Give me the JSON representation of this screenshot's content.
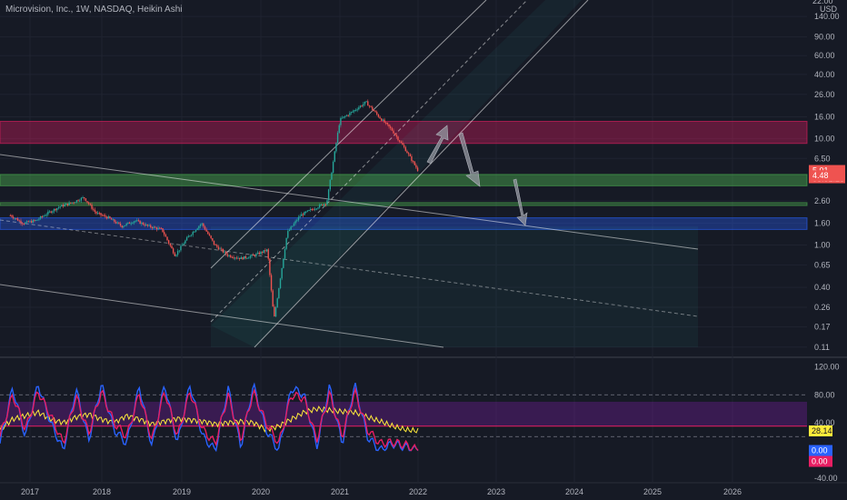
{
  "legend": "Microvision, Inc., 1W, NASDAQ, Heikin Ashi",
  "currency": "USD",
  "top_tick": "22.00",
  "colors": {
    "background": "#161a25",
    "up": "#26a69a",
    "down": "#ef5350",
    "channel": "#ffffff",
    "red_zone": "#e91e63",
    "green_zone": "#4caf50",
    "blue_zone": "#2962ff",
    "k_line": "#2962ff",
    "d_line": "#e91e63",
    "rsi_line": "#ffeb3b",
    "osc_band": "#7b1fa2"
  },
  "chart_data": [
    {
      "type": "candlestick",
      "title": "Microvision, Inc., 1W, NASDAQ, Heikin Ashi",
      "y_scale": "log",
      "ylim": [
        0.09,
        200
      ],
      "x_ticks": [
        "2017",
        "2018",
        "2019",
        "2020",
        "2021",
        "2022",
        "2023",
        "2024",
        "2025",
        "2026"
      ],
      "y_ticks": [
        "140.00",
        "90.00",
        "60.00",
        "40.00",
        "26.00",
        "16.00",
        "10.00",
        "6.50",
        "2.60",
        "1.60",
        "1.00",
        "0.65",
        "0.40",
        "0.26",
        "0.17",
        "0.11"
      ],
      "price_labels": {
        "current": "5.01",
        "countdown": "08:51:28",
        "low": "4.48"
      },
      "zones": [
        {
          "name": "resistance",
          "from": 9.0,
          "to": 14.5
        },
        {
          "name": "support",
          "from": 3.6,
          "to": 4.6
        },
        {
          "name": "support-thin",
          "from": 2.35,
          "to": 2.5
        },
        {
          "name": "demand",
          "from": 1.4,
          "to": 1.8
        }
      ],
      "series": [
        {
          "x": [
            "2016-10",
            "2016-12",
            "2017-02",
            "2017-04",
            "2017-06",
            "2017-08",
            "2017-10",
            "2017-12",
            "2018-02",
            "2018-04",
            "2018-06",
            "2018-08",
            "2018-10",
            "2018-12",
            "2019-02",
            "2019-04",
            "2019-06",
            "2019-08",
            "2019-10",
            "2019-12",
            "2020-02",
            "2020-03",
            "2020-05",
            "2020-07",
            "2020-09",
            "2020-11",
            "2021-01",
            "2021-03",
            "2021-05",
            "2021-07",
            "2021-09",
            "2021-11",
            "2022-01"
          ],
          "values": [
            1.9,
            1.6,
            1.7,
            2.0,
            2.3,
            2.5,
            2.8,
            2.0,
            1.8,
            1.5,
            1.7,
            1.5,
            1.4,
            0.8,
            1.2,
            1.6,
            1.0,
            0.8,
            0.75,
            0.8,
            0.9,
            0.2,
            1.3,
            1.9,
            2.2,
            2.5,
            15.0,
            18.0,
            22.0,
            16.0,
            12.0,
            8.0,
            5.0
          ]
        }
      ]
    },
    {
      "type": "line",
      "title": "",
      "ylim": [
        -45,
        130
      ],
      "y_ticks": [
        "120.00",
        "80.00",
        "40.00",
        "0.00",
        "-40.00"
      ],
      "levels": [
        80,
        20
      ],
      "band": [
        35,
        70
      ],
      "last_values": {
        "rsi": "28.14",
        "k": "0.00",
        "d": "0.00"
      },
      "series": [
        {
          "name": "RSI",
          "values": [
            30,
            45,
            50,
            55,
            45,
            40,
            48,
            52,
            45,
            40,
            50,
            45,
            38,
            42,
            46,
            44,
            42,
            38,
            40,
            42,
            40,
            30,
            35,
            45,
            55,
            60,
            58,
            56,
            55,
            48,
            42,
            35,
            30,
            28
          ]
        },
        {
          "name": "K",
          "values": [
            10,
            90,
            20,
            95,
            40,
            0,
            88,
            15,
            95,
            30,
            10,
            92,
            5,
            96,
            10,
            95,
            20,
            0,
            90,
            5,
            94,
            30,
            0,
            90,
            80,
            5,
            92,
            10,
            95,
            20,
            0,
            10,
            5,
            0
          ]
        },
        {
          "name": "D",
          "values": [
            20,
            80,
            30,
            85,
            50,
            10,
            78,
            25,
            85,
            40,
            20,
            82,
            15,
            86,
            20,
            85,
            30,
            10,
            80,
            15,
            84,
            40,
            10,
            80,
            75,
            15,
            82,
            20,
            85,
            30,
            10,
            12,
            8,
            0
          ]
        }
      ]
    }
  ]
}
